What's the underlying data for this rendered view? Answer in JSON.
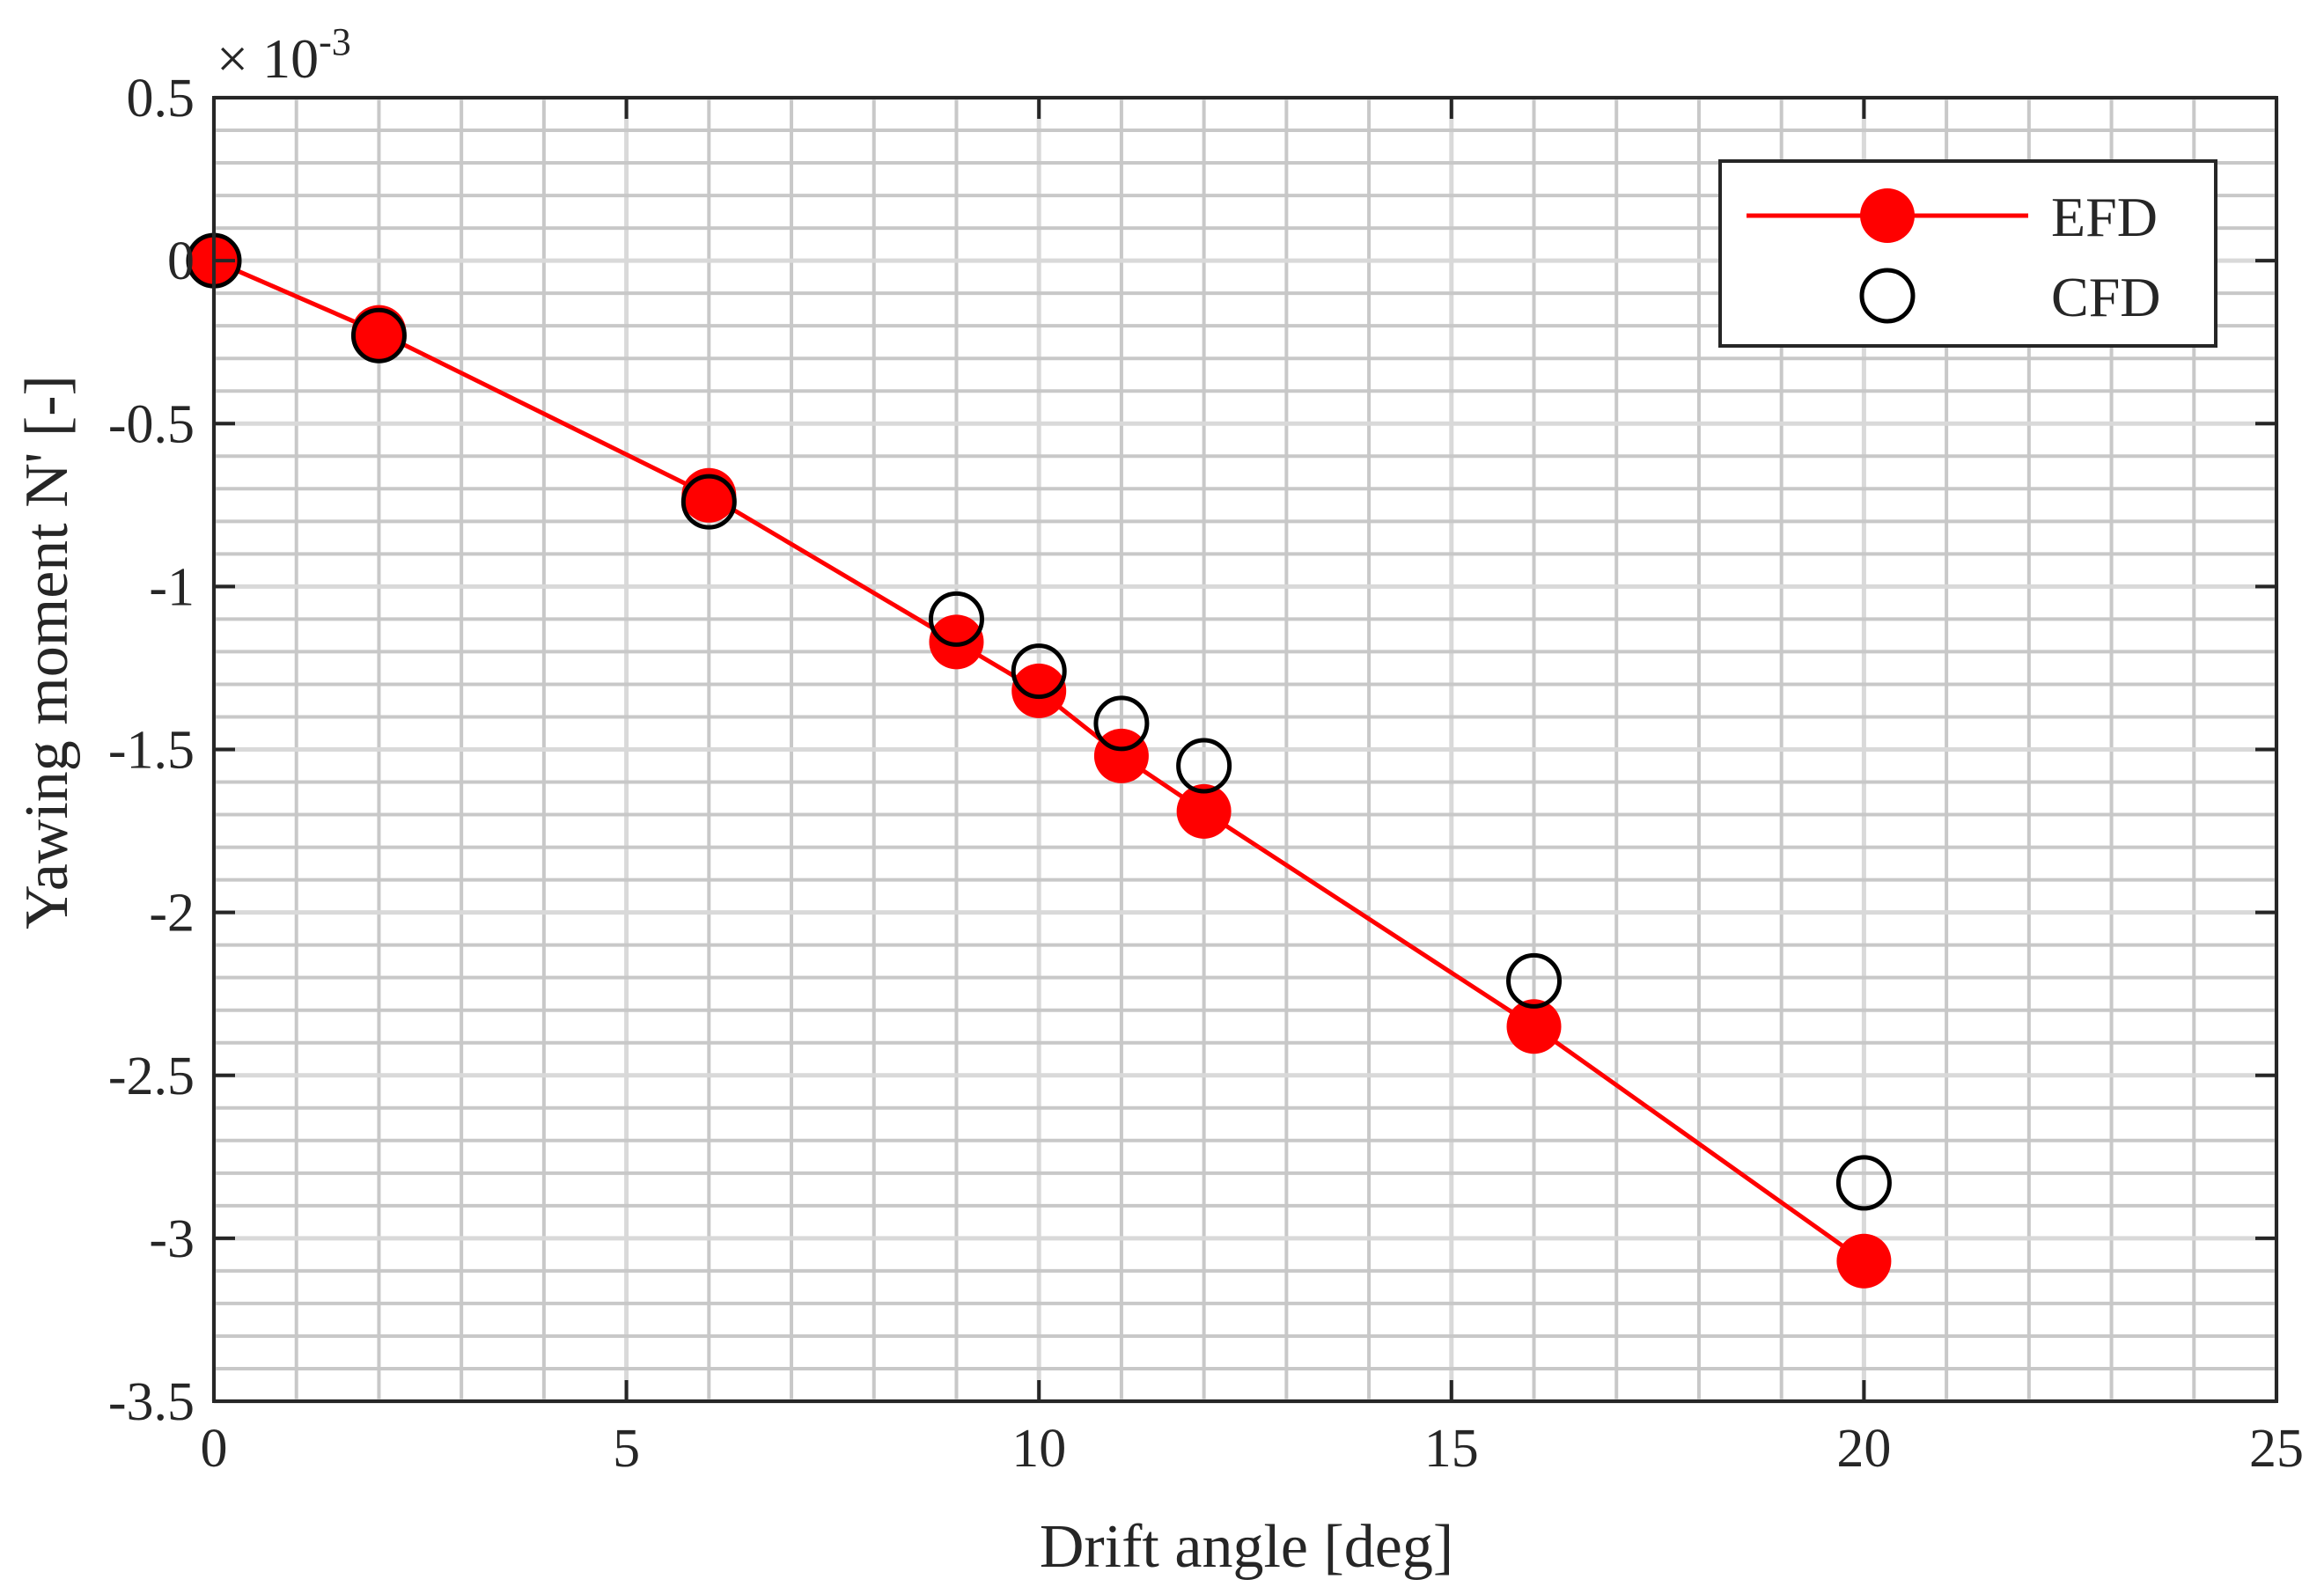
{
  "chart_data": {
    "type": "line",
    "title": "",
    "xlabel": "Drift angle [deg]",
    "ylabel": "Yawing moment N' [-]",
    "exponent_label": "× 10",
    "exponent_power": "-3",
    "xlim": [
      0,
      25
    ],
    "ylim": [
      -3.5,
      0.5
    ],
    "xticks": [
      0,
      5,
      10,
      15,
      20,
      25
    ],
    "xtick_labels": [
      "0",
      "5",
      "10",
      "15",
      "20",
      "25"
    ],
    "yticks": [
      0.5,
      0,
      -0.5,
      -1,
      -1.5,
      -2,
      -2.5,
      -3,
      -3.5
    ],
    "ytick_labels": [
      "0.5",
      "0",
      "-0.5",
      "-1",
      "-1.5",
      "-2",
      "-2.5",
      "-3",
      "-3.5"
    ],
    "grid": true,
    "legend_position": "top-right",
    "series": [
      {
        "name": "EFD",
        "style": "line-with-filled-markers",
        "color": "#ff0000",
        "x": [
          0,
          2,
          6,
          9,
          10,
          11,
          12,
          16,
          20
        ],
        "y": [
          0,
          -0.22,
          -0.72,
          -1.17,
          -1.32,
          -1.52,
          -1.69,
          -2.35,
          -3.07
        ]
      },
      {
        "name": "CFD",
        "style": "open-markers",
        "color": "#000000",
        "x": [
          0,
          2,
          6,
          9,
          10,
          11,
          12,
          16,
          20
        ],
        "y": [
          0,
          -0.23,
          -0.74,
          -1.1,
          -1.26,
          -1.42,
          -1.55,
          -2.21,
          -2.83
        ]
      }
    ]
  }
}
